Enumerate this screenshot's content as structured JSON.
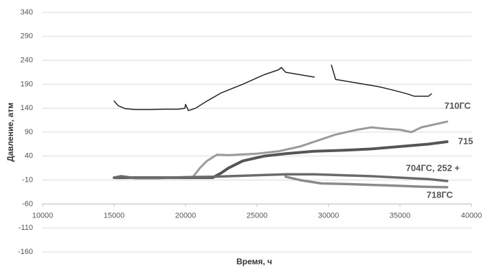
{
  "chart_data": {
    "type": "line",
    "x_label": "Время, ч",
    "y_label": "Давление, атм",
    "xlim": [
      10000,
      40000
    ],
    "xticks": [
      10000,
      15000,
      20000,
      25000,
      30000,
      35000,
      40000
    ],
    "ylim": [
      -160,
      340
    ],
    "yticks": [
      -160,
      -110,
      -60,
      -10,
      40,
      90,
      140,
      190,
      240,
      290,
      340
    ],
    "x_axis_crosses": -60,
    "grid": true,
    "series": [
      {
        "color": "#222222",
        "x": [
          15000,
          15300,
          15800,
          16500,
          17500,
          18500,
          19500,
          19950,
          20000,
          20200,
          20700,
          21500,
          22500,
          24000,
          25500,
          26500,
          26700,
          27000,
          28000,
          29000,
          29300,
          30200,
          30500,
          31500,
          32500,
          33500,
          34500,
          35500,
          36000,
          37000,
          37200
        ],
        "values": [
          155,
          145,
          139,
          137,
          137,
          138,
          138,
          140,
          148,
          135,
          140,
          155,
          172,
          190,
          210,
          220,
          225,
          215,
          210,
          205,
          null,
          230,
          200,
          195,
          190,
          185,
          178,
          170,
          165,
          165,
          170
        ]
      },
      {
        "name": "710ГС",
        "color": "#9a9a9a",
        "x": [
          15000,
          17000,
          20500,
          21000,
          21500,
          22200,
          23000,
          25000,
          26500,
          28000,
          29500,
          30500,
          32000,
          33000,
          34000,
          35000,
          35800,
          36500,
          38300
        ],
        "values": [
          -5,
          -6,
          -4,
          15,
          30,
          43,
          42,
          45,
          50,
          60,
          75,
          85,
          95,
          100,
          97,
          95,
          90,
          100,
          112
        ]
      },
      {
        "name": "715",
        "color": "#555555",
        "x": [
          15000,
          18000,
          21900,
          22500,
          23000,
          24000,
          25500,
          27000,
          29000,
          31000,
          33000,
          35000,
          37000,
          38300
        ],
        "values": [
          -5,
          -5,
          -5,
          5,
          15,
          30,
          40,
          45,
          50,
          52,
          55,
          60,
          65,
          70
        ]
      },
      {
        "name": "704ГС, 252 +",
        "color": "#6a6a6a",
        "x": [
          15000,
          15500,
          16500,
          18000,
          20000,
          22000,
          25000,
          27000,
          29000,
          31000,
          33000,
          35000,
          37000,
          38300
        ],
        "values": [
          -5,
          -2,
          -6,
          -6,
          -4,
          -3,
          0,
          2,
          2,
          0,
          -2,
          -5,
          -8,
          -12
        ]
      },
      {
        "name": "718ГС",
        "color": "#8a8a8a",
        "x": [
          27000,
          28000,
          29500,
          31000,
          33000,
          35000,
          36500,
          38300
        ],
        "values": [
          -3,
          -10,
          -17,
          -18,
          -20,
          -22,
          -24,
          -25
        ]
      }
    ]
  }
}
